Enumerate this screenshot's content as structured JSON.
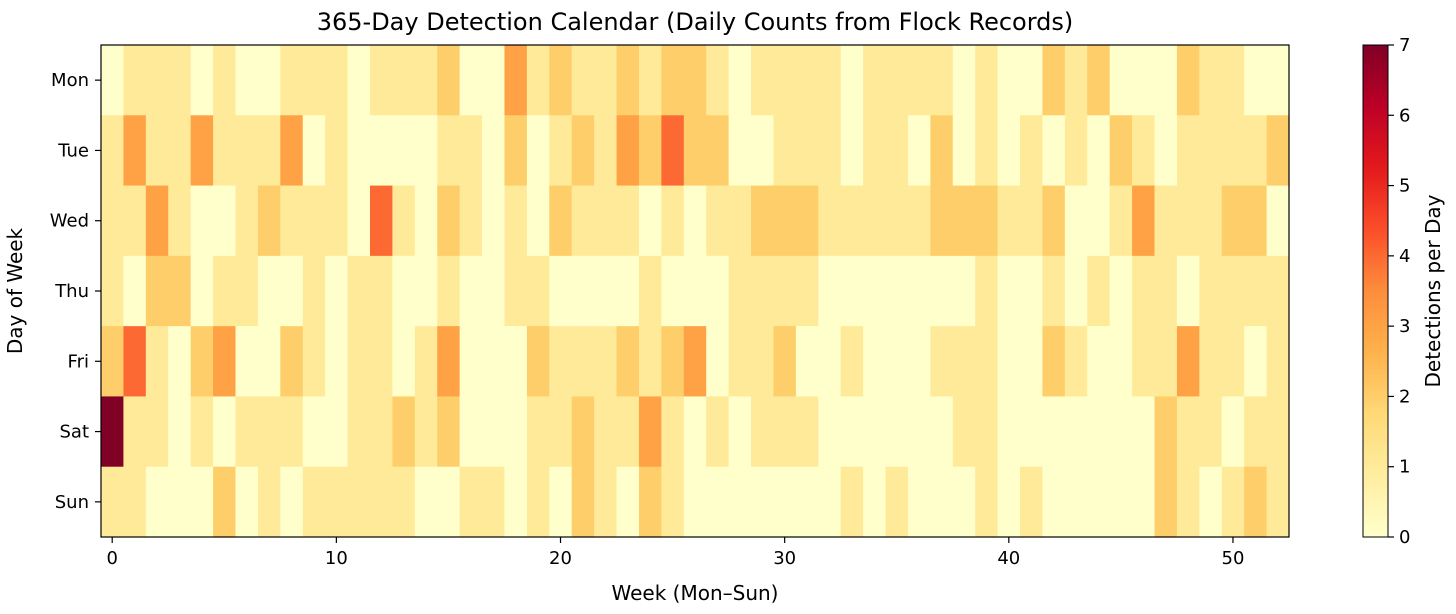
{
  "chart_data": {
    "type": "heatmap",
    "title": "365-Day Detection Calendar (Daily Counts from Flock Records)",
    "xlabel": "Week (Mon–Sun)",
    "ylabel": "Day of Week",
    "colorbar_label": "Detections per Day",
    "colormap": "YlOrRd",
    "vmin": 0,
    "vmax": 7,
    "xlim": [
      -0.5,
      52.5
    ],
    "x_ticks": [
      0,
      10,
      20,
      30,
      40,
      50
    ],
    "colorbar_ticks": [
      0,
      1,
      2,
      3,
      4,
      5,
      6,
      7
    ],
    "rows": [
      "Mon",
      "Tue",
      "Wed",
      "Thu",
      "Fri",
      "Sat",
      "Sun"
    ],
    "weeks": 53,
    "values": [
      [
        0,
        1,
        1,
        1,
        0,
        1,
        0,
        0,
        1,
        1,
        1,
        0,
        1,
        1,
        1,
        2,
        0,
        0,
        3,
        1,
        2,
        1,
        1,
        2,
        1,
        2,
        2,
        1,
        0,
        1,
        1,
        1,
        1,
        0,
        1,
        1,
        1,
        1,
        0,
        1,
        0,
        0,
        2,
        1,
        2,
        0,
        0,
        0,
        2,
        1,
        1,
        0,
        0
      ],
      [
        1,
        3,
        1,
        1,
        3,
        1,
        1,
        1,
        3,
        0,
        1,
        0,
        0,
        0,
        0,
        1,
        1,
        0,
        2,
        0,
        1,
        2,
        1,
        3,
        2,
        4,
        2,
        2,
        0,
        0,
        1,
        1,
        1,
        0,
        1,
        1,
        0,
        2,
        0,
        1,
        0,
        1,
        0,
        1,
        0,
        2,
        1,
        0,
        1,
        1,
        1,
        1,
        2
      ],
      [
        1,
        1,
        3,
        1,
        0,
        0,
        1,
        2,
        1,
        1,
        1,
        0,
        4,
        1,
        0,
        2,
        1,
        0,
        1,
        0,
        2,
        1,
        1,
        1,
        0,
        1,
        0,
        1,
        1,
        2,
        2,
        2,
        1,
        1,
        1,
        1,
        1,
        2,
        2,
        2,
        1,
        1,
        2,
        0,
        0,
        1,
        3,
        1,
        1,
        1,
        2,
        2,
        0
      ],
      [
        1,
        0,
        2,
        2,
        0,
        1,
        1,
        0,
        0,
        1,
        0,
        1,
        1,
        0,
        0,
        1,
        0,
        0,
        1,
        1,
        0,
        0,
        0,
        0,
        1,
        0,
        0,
        0,
        1,
        1,
        1,
        1,
        0,
        0,
        0,
        0,
        0,
        0,
        0,
        1,
        0,
        0,
        1,
        0,
        1,
        0,
        1,
        1,
        0,
        1,
        1,
        1,
        1
      ],
      [
        2,
        4,
        1,
        0,
        2,
        3,
        0,
        0,
        2,
        1,
        0,
        1,
        1,
        0,
        1,
        3,
        0,
        0,
        0,
        2,
        1,
        1,
        1,
        2,
        1,
        2,
        3,
        0,
        1,
        1,
        2,
        0,
        0,
        1,
        0,
        0,
        0,
        1,
        1,
        1,
        0,
        0,
        2,
        1,
        0,
        0,
        1,
        1,
        3,
        1,
        1,
        0,
        1
      ],
      [
        7,
        1,
        1,
        0,
        1,
        0,
        1,
        1,
        1,
        0,
        0,
        1,
        1,
        2,
        1,
        2,
        0,
        0,
        0,
        1,
        1,
        2,
        1,
        1,
        3,
        1,
        0,
        1,
        0,
        1,
        1,
        1,
        0,
        0,
        0,
        0,
        0,
        0,
        1,
        1,
        0,
        0,
        0,
        0,
        0,
        0,
        0,
        2,
        1,
        1,
        0,
        1,
        1
      ],
      [
        1,
        1,
        0,
        0,
        0,
        2,
        0,
        1,
        0,
        1,
        1,
        1,
        1,
        1,
        0,
        0,
        1,
        1,
        0,
        1,
        0,
        2,
        1,
        0,
        2,
        1,
        0,
        0,
        0,
        0,
        0,
        0,
        0,
        1,
        0,
        1,
        0,
        0,
        0,
        1,
        0,
        1,
        0,
        0,
        0,
        0,
        0,
        2,
        1,
        0,
        1,
        2,
        1
      ]
    ]
  }
}
